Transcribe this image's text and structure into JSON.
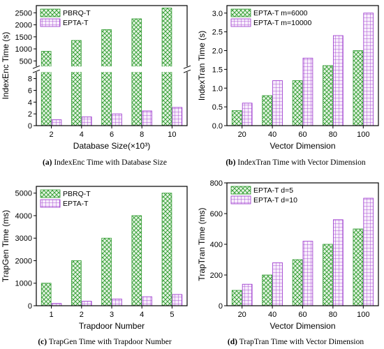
{
  "colors": {
    "green": "#2e9a2e",
    "green_fill": "#e6f5e4",
    "purple": "#9932cc",
    "purple_fill": "#f7edfb"
  },
  "captions": [
    {
      "label": "(a)",
      "text": "IndexEnc Time with Database Size"
    },
    {
      "label": "(b)",
      "text": "IndexTran Time with Vector Dimension"
    },
    {
      "label": "(c)",
      "text": "TrapGen Time with Trapdoor Number"
    },
    {
      "label": "(d)",
      "text": "TrapTran Time with Vector Dimension"
    }
  ],
  "chart_data": [
    {
      "type": "bar",
      "xlabel": "Database Size(×10³)",
      "ylabel": "IndexEnc Time (s)",
      "categories": [
        "2",
        "4",
        "6",
        "8",
        "10"
      ],
      "series": [
        {
          "name": "PBRQ-T",
          "pattern": "crosshatch-green",
          "values": [
            900,
            1350,
            1800,
            2250,
            2700
          ]
        },
        {
          "name": "EPTA-T",
          "pattern": "grid-purple",
          "values": [
            1,
            1.5,
            2,
            2.5,
            3.1
          ]
        }
      ],
      "broken_axis": true,
      "lower_ylim": [
        0,
        9
      ],
      "upper_ylim": [
        300,
        2800
      ],
      "lower_ticks": [
        "0",
        "2",
        "4",
        "6",
        "8"
      ],
      "upper_ticks": [
        "500",
        "1000",
        "1500",
        "2000",
        "2500"
      ],
      "legend": "top-left",
      "grid": false
    },
    {
      "type": "bar",
      "xlabel": "Vector Dimension",
      "ylabel": "IndexTran Time (s)",
      "categories": [
        "20",
        "40",
        "60",
        "80",
        "100"
      ],
      "series": [
        {
          "name": "EPTA-T  m=6000",
          "pattern": "crosshatch-green",
          "values": [
            0.4,
            0.8,
            1.2,
            1.6,
            2.0
          ]
        },
        {
          "name": "EPTA-T  m=10000",
          "pattern": "grid-purple",
          "values": [
            0.6,
            1.2,
            1.8,
            2.4,
            3.0
          ]
        }
      ],
      "ylim": [
        0,
        3.2
      ],
      "ticks": [
        "0.0",
        "0.5",
        "1.0",
        "1.5",
        "2.0",
        "2.5",
        "3.0"
      ],
      "legend": "top-left",
      "grid": false
    },
    {
      "type": "bar",
      "xlabel": "Trapdoor Number",
      "ylabel": "TrapGen Time (ms)",
      "categories": [
        "1",
        "2",
        "3",
        "4",
        "5"
      ],
      "series": [
        {
          "name": "PBRQ-T",
          "pattern": "crosshatch-green",
          "values": [
            1000,
            2000,
            3000,
            4000,
            5000
          ]
        },
        {
          "name": "EPTA-T",
          "pattern": "grid-purple",
          "values": [
            100,
            200,
            300,
            400,
            500
          ]
        }
      ],
      "ylim": [
        0,
        5300
      ],
      "ticks": [
        "0",
        "1000",
        "2000",
        "3000",
        "4000",
        "5000"
      ],
      "legend": "top-left",
      "grid": false
    },
    {
      "type": "bar",
      "xlabel": "Vector Dimension",
      "ylabel": "TrapTran Time (ms)",
      "categories": [
        "20",
        "40",
        "60",
        "80",
        "100"
      ],
      "series": [
        {
          "name": "EPTA-T  d=5",
          "pattern": "crosshatch-green",
          "values": [
            100,
            200,
            300,
            400,
            500
          ]
        },
        {
          "name": "EPTA-T  d=10",
          "pattern": "grid-purple",
          "values": [
            140,
            280,
            420,
            560,
            700
          ]
        }
      ],
      "ylim": [
        0,
        800
      ],
      "ticks": [
        "0",
        "200",
        "400",
        "600",
        "800"
      ],
      "legend": "top-left",
      "grid": false
    }
  ]
}
